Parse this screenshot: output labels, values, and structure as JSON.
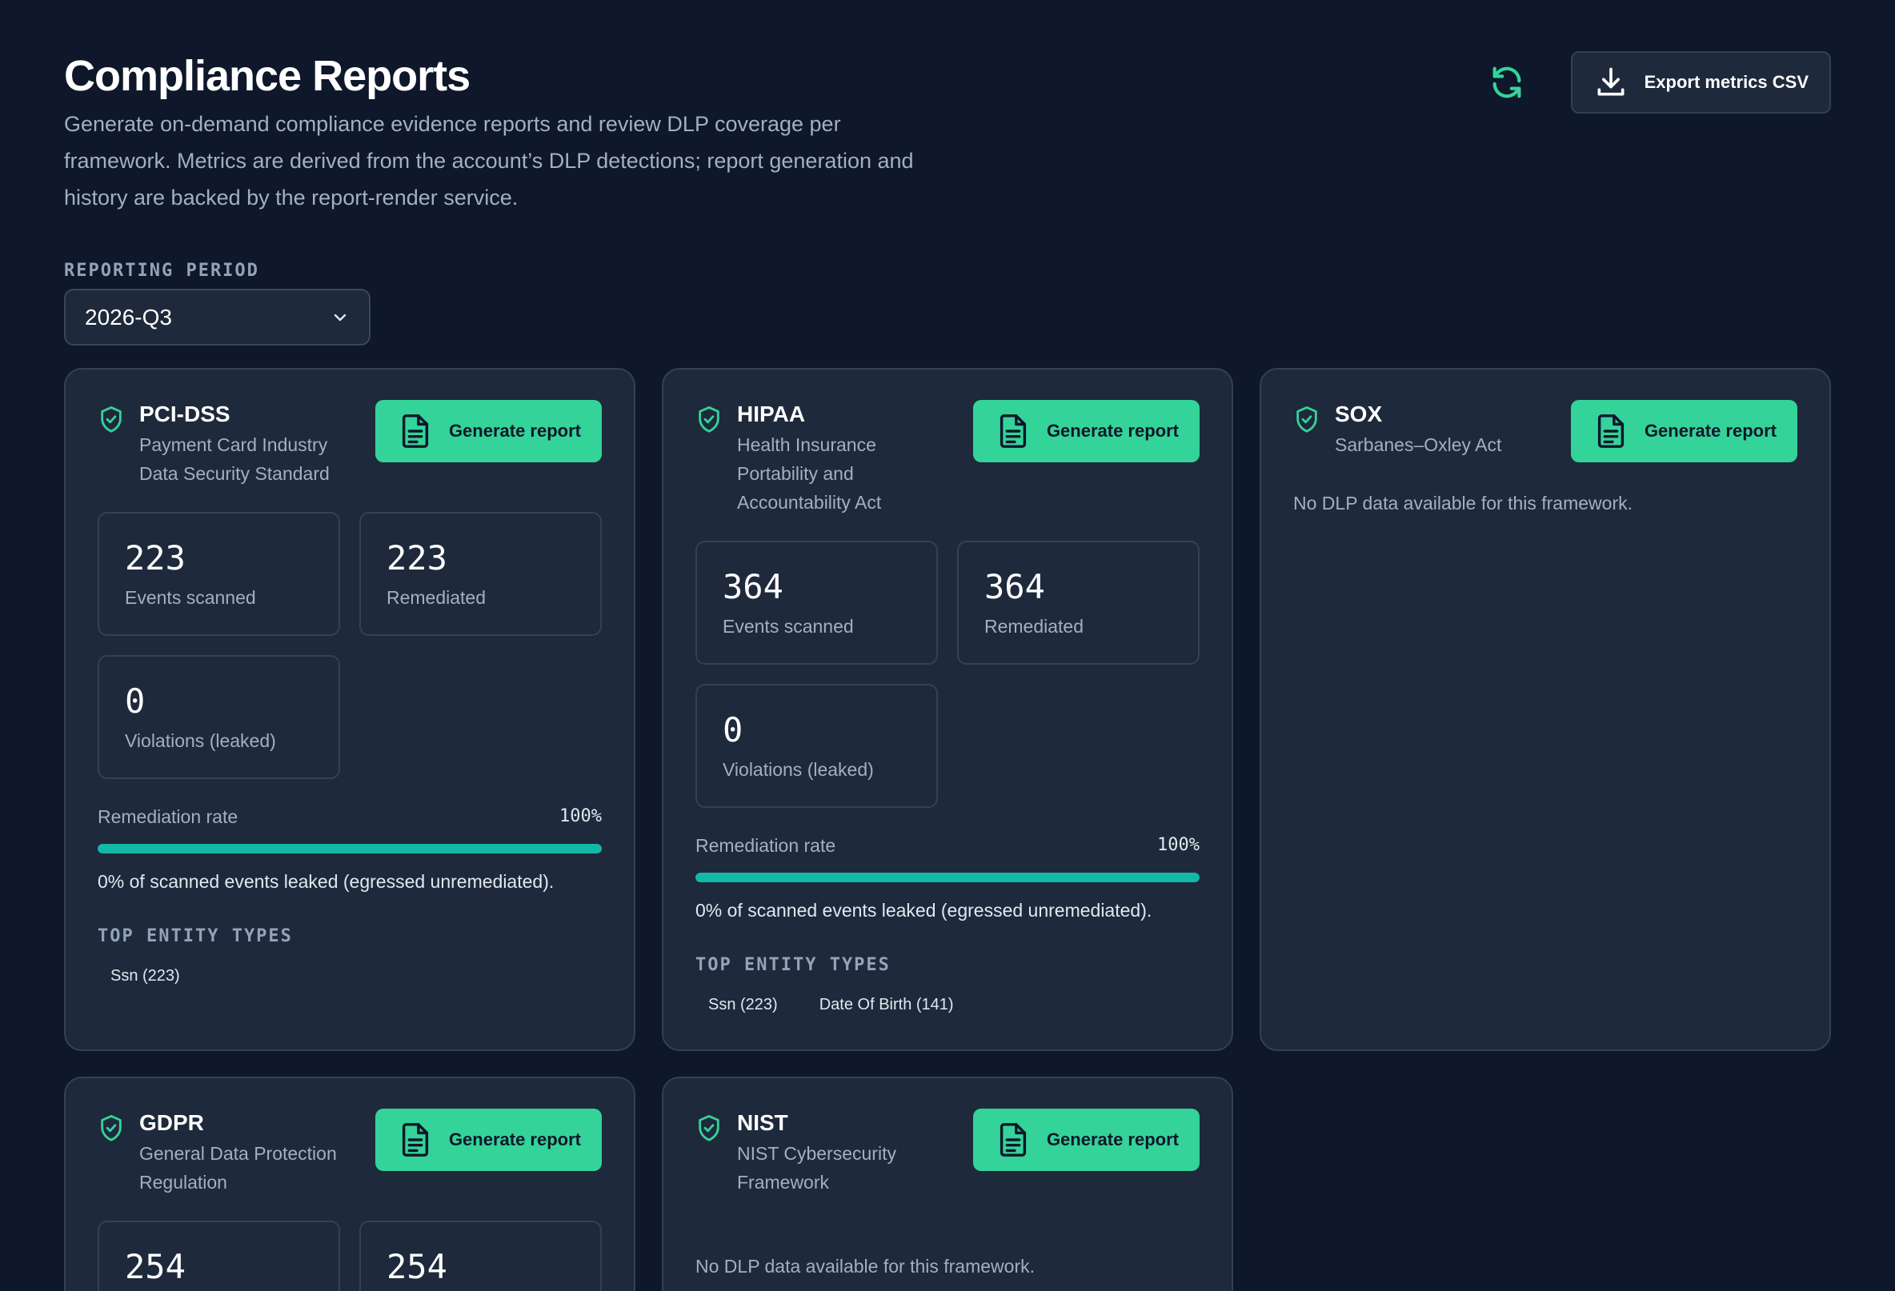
{
  "header": {
    "title": "Compliance Reports",
    "subtitle": "Generate on-demand compliance evidence reports and review DLP coverage per framework. Metrics are derived from the account’s DLP detections; report generation and history are backed by the report-render service.",
    "export_label": "Export metrics CSV",
    "refresh_icon": "refresh-icon",
    "export_icon": "download-icon"
  },
  "period": {
    "label": "REPORTING PERIOD",
    "value": "2026-Q3"
  },
  "common": {
    "generate_label": "Generate report",
    "events_scanned_label": "Events scanned",
    "remediated_label": "Remediated",
    "violations_label": "Violations (leaked)",
    "remediation_rate_label": "Remediation rate",
    "top_entity_label": "TOP ENTITY TYPES",
    "no_data": "No DLP data available for this framework."
  },
  "accent_colors": {
    "primary": "#34d399",
    "progress": "#14b8a6",
    "background": "#0f172a",
    "card": "#1e293b"
  },
  "frameworks": [
    {
      "name": "PCI-DSS",
      "full_name": "Payment Card Industry Data Security Standard",
      "events_scanned": "223",
      "remediated": "223",
      "violations": "0",
      "remediation_rate": "100%",
      "remediation_fraction": 1.0,
      "leak_note": "0% of scanned events leaked (egressed unremediated).",
      "entities": [
        "Ssn (223)"
      ]
    },
    {
      "name": "HIPAA",
      "full_name": "Health Insurance Portability and Accountability Act",
      "events_scanned": "364",
      "remediated": "364",
      "violations": "0",
      "remediation_rate": "100%",
      "remediation_fraction": 1.0,
      "leak_note": "0% of scanned events leaked (egressed unremediated).",
      "entities": [
        "Ssn (223)",
        "Date Of Birth (141)"
      ]
    },
    {
      "name": "SOX",
      "full_name": "Sarbanes–Oxley Act"
    },
    {
      "name": "GDPR",
      "full_name": "General Data Protection Regulation",
      "events_scanned": "254",
      "remediated": "254"
    },
    {
      "name": "NIST",
      "full_name": "NIST Cybersecurity Framework"
    }
  ]
}
